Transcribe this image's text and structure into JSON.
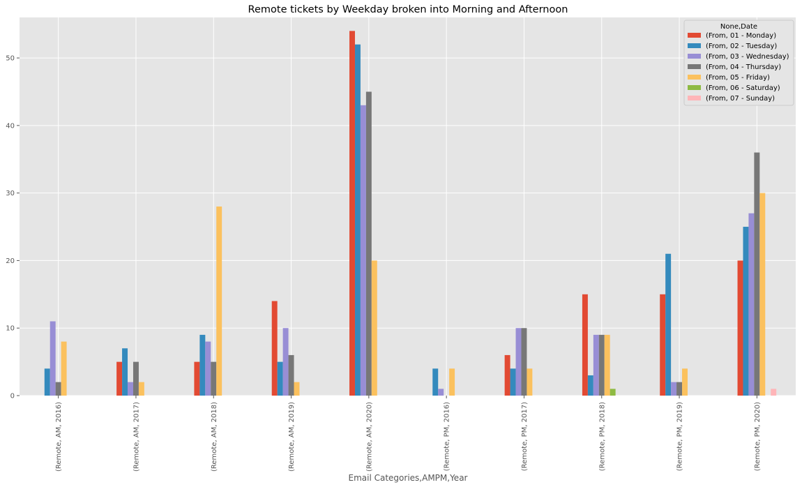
{
  "chart_data": {
    "type": "bar",
    "title": "Remote tickets by Weekday broken into Morning and Afternoon",
    "xlabel": "Email Categories,AMPM,Year",
    "ylabel": "",
    "ylim": [
      0,
      56
    ],
    "yticks": [
      0,
      10,
      20,
      30,
      40,
      50
    ],
    "grid": true,
    "legend_title": "None,Date",
    "legend_position": "top-right",
    "categories": [
      "(Remote, AM, 2016)",
      "(Remote, AM, 2017)",
      "(Remote, AM, 2018)",
      "(Remote, AM, 2019)",
      "(Remote, AM, 2020)",
      "(Remote, PM, 2016)",
      "(Remote, PM, 2017)",
      "(Remote, PM, 2018)",
      "(Remote, PM, 2019)",
      "(Remote, PM, 2020)"
    ],
    "series": [
      {
        "name": "(From, 01 - Monday)",
        "color": "#E24A33",
        "values": [
          0,
          5,
          5,
          14,
          54,
          0,
          6,
          15,
          15,
          20
        ]
      },
      {
        "name": "(From, 02 - Tuesday)",
        "color": "#348ABD",
        "values": [
          4,
          7,
          9,
          5,
          52,
          4,
          4,
          3,
          21,
          25
        ]
      },
      {
        "name": "(From, 03 - Wednesday)",
        "color": "#988ED5",
        "values": [
          11,
          2,
          8,
          10,
          43,
          1,
          10,
          9,
          2,
          27
        ]
      },
      {
        "name": "(From, 04 - Thursday)",
        "color": "#777777",
        "values": [
          2,
          5,
          5,
          6,
          45,
          0,
          10,
          9,
          2,
          36
        ]
      },
      {
        "name": "(From, 05 - Friday)",
        "color": "#FBC15E",
        "values": [
          8,
          2,
          28,
          2,
          20,
          4,
          4,
          9,
          4,
          30
        ]
      },
      {
        "name": "(From, 06 - Saturday)",
        "color": "#8EBA42",
        "values": [
          0,
          0,
          0,
          0,
          0,
          0,
          0,
          1,
          0,
          0
        ]
      },
      {
        "name": "(From, 07 - Sunday)",
        "color": "#FFB5B8",
        "values": [
          0,
          0,
          0,
          0,
          0,
          0,
          0,
          0,
          0,
          1
        ]
      }
    ]
  }
}
